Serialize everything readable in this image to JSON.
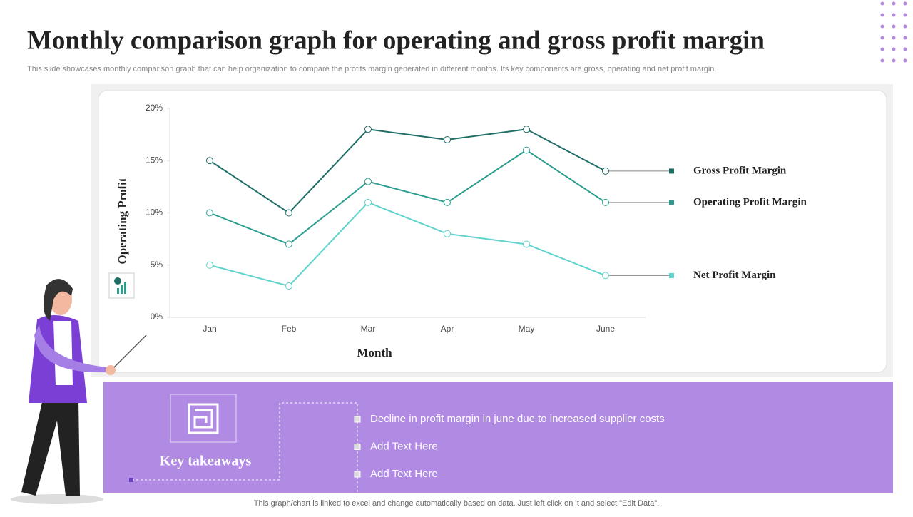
{
  "header": {
    "title": "Monthly comparison graph for operating and gross profit margin",
    "subtitle": "This slide showcases monthly comparison graph that can help organization to compare the profits margin generated in different months. Its key components are gross, operating and net profit margin."
  },
  "chart_data": {
    "type": "line",
    "x_label": "Month",
    "y_label": "Operating Profit",
    "categories": [
      "Jan",
      "Feb",
      "Mar",
      "Apr",
      "May",
      "June"
    ],
    "series": [
      {
        "name": "Gross Profit Margin",
        "color": "#1f6e66",
        "values": [
          15,
          10,
          18,
          17,
          18,
          14
        ]
      },
      {
        "name": "Operating Profit Margin",
        "color": "#2a9d8f",
        "values": [
          10,
          7,
          13,
          11,
          16,
          11
        ]
      },
      {
        "name": "Net Profit Margin",
        "color": "#5fd3cc",
        "values": [
          5,
          3,
          11,
          8,
          7,
          4
        ]
      }
    ],
    "ylim": [
      0,
      20
    ],
    "yticks": [
      {
        "value": 0,
        "label": "0%"
      },
      {
        "value": 5,
        "label": "5%"
      },
      {
        "value": 10,
        "label": "10%"
      },
      {
        "value": 15,
        "label": "15%"
      },
      {
        "value": 20,
        "label": "20%"
      }
    ]
  },
  "takeaways": {
    "title": "Key takeaways",
    "items": [
      "Decline in profit margin in june due to increased supplier costs",
      "Add Text Here",
      "Add Text Here"
    ]
  },
  "footer": "This graph/chart is linked to excel and change automatically based on data. Just left click on it and select \"Edit Data\"."
}
